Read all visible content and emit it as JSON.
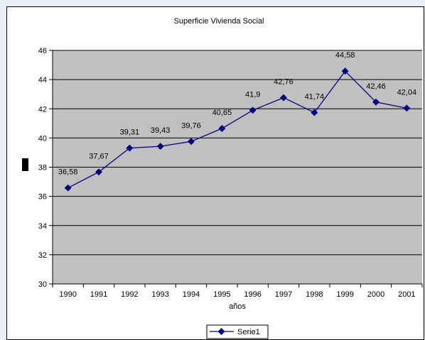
{
  "chart_data": {
    "type": "line",
    "title": "Superficie Vivienda Social",
    "xlabel": "años",
    "ylabel": "",
    "categories": [
      "1990",
      "1991",
      "1992",
      "1993",
      "1994",
      "1995",
      "1996",
      "1997",
      "1998",
      "1999",
      "2000",
      "2001"
    ],
    "series": [
      {
        "name": "Serie1",
        "values": [
          36.58,
          37.67,
          39.31,
          39.43,
          39.76,
          40.65,
          41.9,
          42.76,
          41.74,
          44.58,
          42.46,
          42.04
        ],
        "labels": [
          "36,58",
          "37,67",
          "39,31",
          "39,43",
          "39,76",
          "40,65",
          "41,9",
          "42,76",
          "41,74",
          "44,58",
          "42,46",
          "42,04"
        ],
        "color": "#000080"
      }
    ],
    "ylim": [
      30,
      46
    ],
    "yticks": [
      "30",
      "32",
      "34",
      "36",
      "38",
      "40",
      "42",
      "44",
      "46"
    ],
    "grid": true,
    "plot_background": "#c0c0c0",
    "legend_position": "bottom"
  }
}
